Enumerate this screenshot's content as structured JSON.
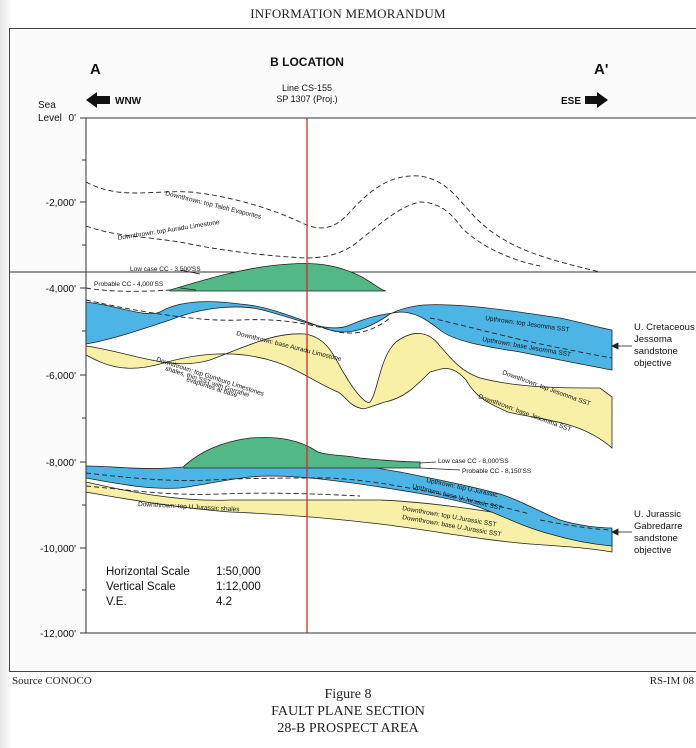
{
  "header": {
    "title": "INFORMATION MEMORANDUM"
  },
  "section": {
    "title": "B LOCATION",
    "line_label": "Line CS-155",
    "sp_label": "SP 1307 (Proj.)",
    "left_end": "A",
    "right_end": "A'",
    "left_direction": "WNW",
    "right_direction": "ESE"
  },
  "axis": {
    "label_sea": "Sea",
    "label_level": "Level",
    "ticks": [
      "0'",
      "-2,000'",
      "-4,000'",
      "-6,000'",
      "-8,000'",
      "-10,000'",
      "-12,000'"
    ]
  },
  "annotations": {
    "top_taleh": "Downthrown: top Taleh Evaporites",
    "top_auradu": "Downthrown: top Auradu Limestone",
    "low_case_upper": "Low case CC - 3,500'SS",
    "probable_upper": "Probable CC - 4,000'SS",
    "top_jesomma_up": "Upthrown: top Jesomma SST",
    "base_jesomma_up": "Upthrown: base Jesomma SST",
    "base_auradu": "Downthrown: base Auradu Limestone",
    "gumburo_1": "Downthrown: top Gumburo Limestones",
    "gumburo_2": "shales, thin SST with Gorrahei",
    "gumburo_3": "evaporites at base",
    "top_jesomma_down": "Downthrown: top Jesomma SST",
    "base_jesomma_down": "Downthrown: base Jesomma SST",
    "low_case_lower": "Low case CC - 8,000'SS",
    "probable_lower": "Probable CC - 8,150'SS",
    "top_ujur_up": "Upthrown: top U.Jurassic",
    "base_ujur_up": "Upthrown: base U.Jurassic SST",
    "top_ujur_shales": "Downthrown: top U.Jurassic shales",
    "top_ujur_sst_down": "Downthrown: top U.Jurassic SST",
    "base_ujur_sst_down": "Downthrown: base U.Jurassic SST"
  },
  "objectives": {
    "cretaceous": [
      "U. Cretaceous",
      "Jessoma",
      "sandstone",
      "objective"
    ],
    "jurassic": [
      "U. Jurassic",
      "Gabredarre",
      "sandstone",
      "objective"
    ]
  },
  "scale": {
    "h_label": "Horizontal Scale",
    "h_value": "1:50,000",
    "v_label": "Vertical Scale",
    "v_value": "1:12,000",
    "ve_label": "V.E.",
    "ve_value": "4.2"
  },
  "footer": {
    "source": "Source CONOCO",
    "ref": "RS-IM 08",
    "figure": "Figure 8",
    "caption_1": "FAULT PLANE SECTION",
    "caption_2": "28-B PROSPECT AREA"
  },
  "colors": {
    "sandstone_blue": "#4db4e6",
    "yellow_unit": "#f7f0a6",
    "closure_green": "#52b888",
    "location_line": "#d42a2a"
  }
}
